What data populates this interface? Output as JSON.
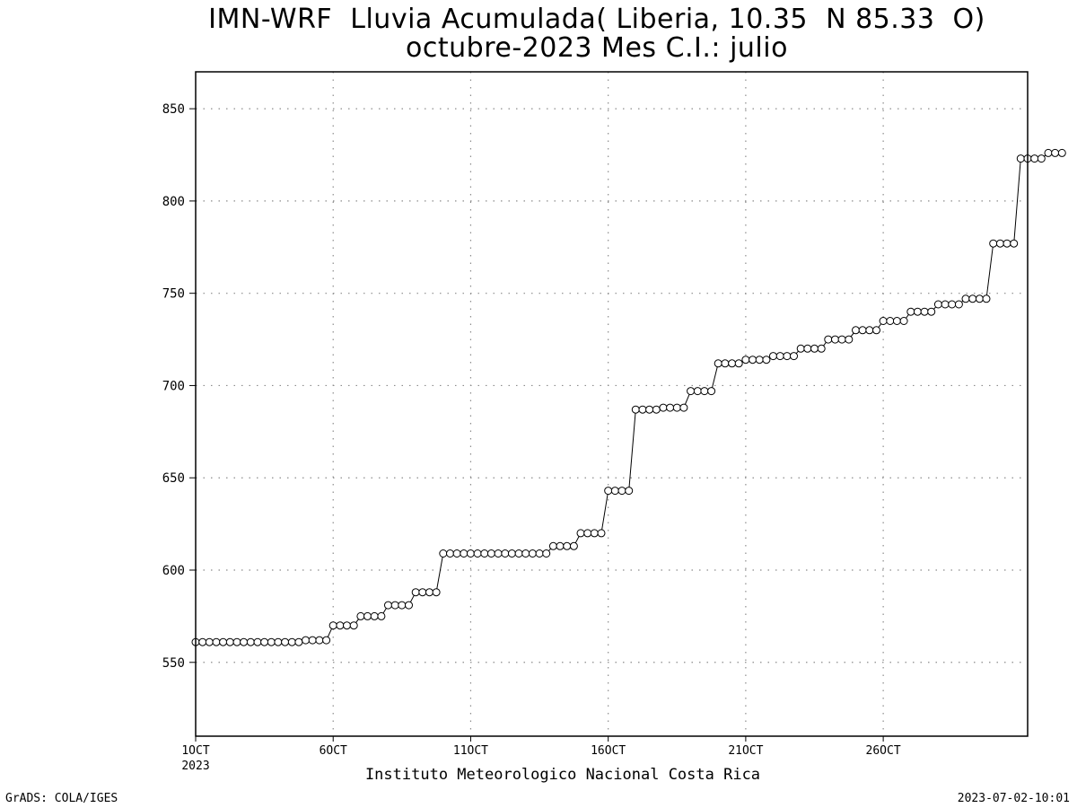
{
  "chart_data": {
    "type": "line",
    "title": "IMN-WRF  Lluvia Acumulada( Liberia, 10.35  N 85.33  O)",
    "subtitle": "octubre-2023 Mes C.I.: julio",
    "xlabel": "Instituto Meteorologico Nacional Costa Rica",
    "ylabel": "",
    "ylim": [
      510,
      870
    ],
    "yticks": [
      550,
      600,
      650,
      700,
      750,
      800,
      850
    ],
    "xlim": [
      1,
      31.25
    ],
    "xticks": [
      {
        "x": 1,
        "label": "1OCT",
        "sublabel": "2023"
      },
      {
        "x": 6,
        "label": "6OCT"
      },
      {
        "x": 11,
        "label": "11OCT"
      },
      {
        "x": 16,
        "label": "16OCT"
      },
      {
        "x": 21,
        "label": "21OCT"
      },
      {
        "x": 26,
        "label": "26OCT"
      }
    ],
    "grid": true,
    "marker": "open-circle",
    "series": [
      {
        "name": "",
        "x0": 1,
        "dx": 0.25,
        "values": [
          561,
          561,
          561,
          561,
          561,
          561,
          561,
          561,
          561,
          561,
          561,
          561,
          561,
          561,
          561,
          561,
          562,
          562,
          562,
          562,
          570,
          570,
          570,
          570,
          575,
          575,
          575,
          575,
          581,
          581,
          581,
          581,
          588,
          588,
          588,
          588,
          609,
          609,
          609,
          609,
          609,
          609,
          609,
          609,
          609,
          609,
          609,
          609,
          609,
          609,
          609,
          609,
          613,
          613,
          613,
          613,
          620,
          620,
          620,
          620,
          643,
          643,
          643,
          643,
          687,
          687,
          687,
          687,
          688,
          688,
          688,
          688,
          697,
          697,
          697,
          697,
          712,
          712,
          712,
          712,
          714,
          714,
          714,
          714,
          716,
          716,
          716,
          716,
          720,
          720,
          720,
          720,
          725,
          725,
          725,
          725,
          730,
          730,
          730,
          730,
          735,
          735,
          735,
          735,
          740,
          740,
          740,
          740,
          744,
          744,
          744,
          744,
          747,
          747,
          747,
          747,
          777,
          777,
          777,
          777,
          823,
          823,
          823,
          823,
          826,
          826,
          826
        ]
      }
    ]
  },
  "footer": {
    "credit_left": "GrADS: COLA/IGES",
    "credit_right": "2023-07-02-10:01"
  },
  "colors": {
    "line": "#000000",
    "marker_fill": "#ffffff",
    "grid": "#8c8c8c",
    "background": "#ffffff"
  }
}
